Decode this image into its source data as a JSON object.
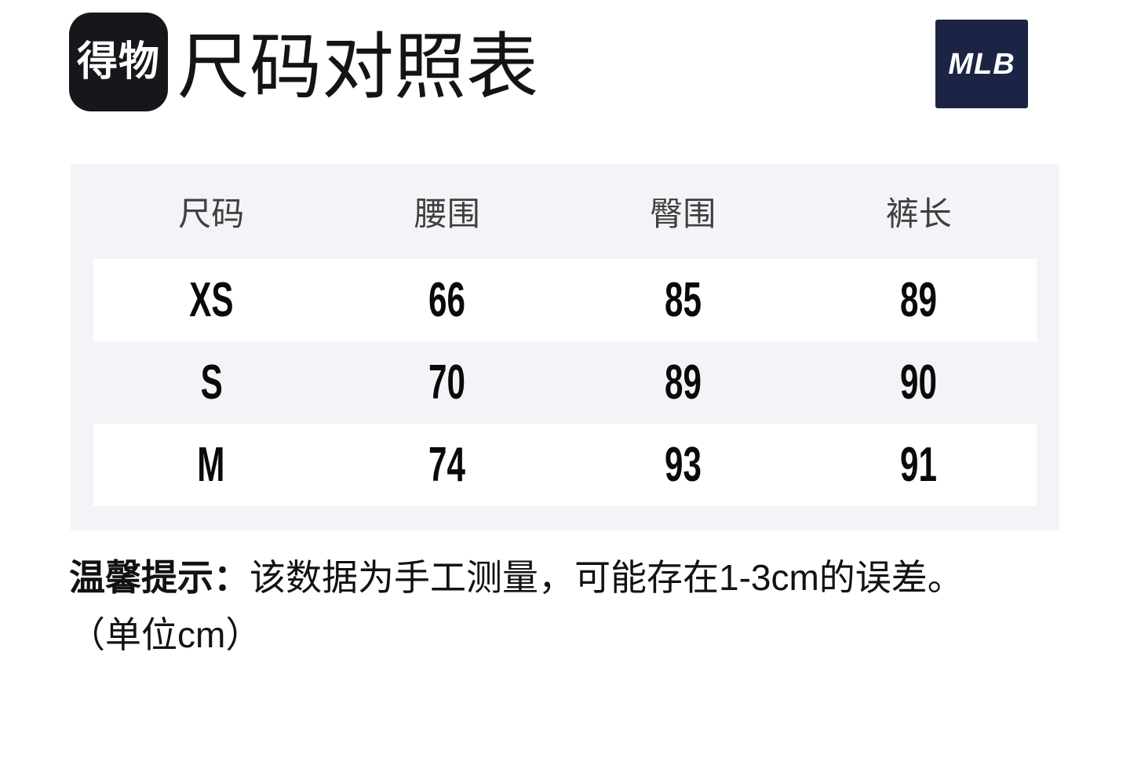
{
  "header": {
    "logo_text": "得物",
    "title": "尺码对照表",
    "brand": "MLB"
  },
  "table": {
    "columns": [
      "尺码",
      "腰围",
      "臀围",
      "裤长"
    ],
    "rows": [
      [
        "XS",
        "66",
        "85",
        "89"
      ],
      [
        "S",
        "70",
        "89",
        "90"
      ],
      [
        "M",
        "74",
        "93",
        "91"
      ]
    ]
  },
  "note": {
    "prefix": "温馨提示：",
    "text": "该数据为手工测量，可能存在1-3cm的误差。",
    "unit_line": "（单位cm）"
  },
  "colors": {
    "table_bg": "#f4f4f8",
    "row_stripe_bg": "#ffffff",
    "dewu_logo_bg": "#17171b",
    "mlb_logo_bg": "#1b2444",
    "title_text": "#141414",
    "header_text": "#3f3f3f",
    "cell_text": "#0a0a0a"
  },
  "chart_data": {
    "type": "table",
    "title": "尺码对照表",
    "columns": [
      "尺码",
      "腰围",
      "臀围",
      "裤长"
    ],
    "rows": [
      [
        "XS",
        66,
        85,
        89
      ],
      [
        "S",
        70,
        89,
        90
      ],
      [
        "M",
        74,
        93,
        91
      ]
    ],
    "unit": "cm",
    "note": "该数据为手工测量，可能存在1-3cm的误差"
  }
}
